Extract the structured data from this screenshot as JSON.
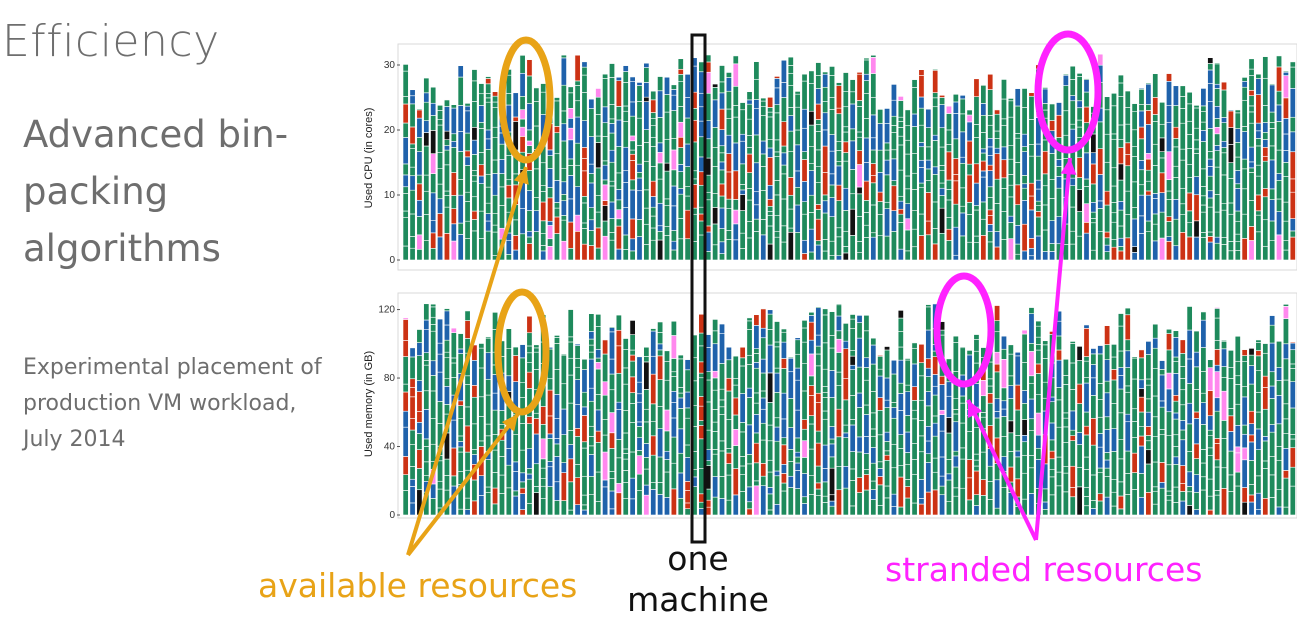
{
  "slide": {
    "title": "Efficiency",
    "subtitle": "Advanced bin-packing algorithms",
    "caption": "Experimental placement of production VM workload, July 2014"
  },
  "annotations": {
    "available": "available resources",
    "stranded": "stranded resources",
    "one_machine_line1": "one",
    "one_machine_line2": "machine"
  },
  "colors": {
    "green": "#1e8a5c",
    "blue": "#1f62ab",
    "red": "#cc3214",
    "black": "#111111",
    "pink": "#ff88ee",
    "available_ring": "#e8a317",
    "stranded_ring": "#ff22ff",
    "machine_box": "#111111"
  },
  "chart_data": [
    {
      "type": "bar",
      "stacked": true,
      "ylabel": "Used CPU (in cores)",
      "yticks": [
        0,
        10,
        20,
        30
      ],
      "ylim": [
        0,
        32
      ],
      "machines": 130,
      "series_colors": [
        "green",
        "blue",
        "red",
        "black",
        "pink"
      ],
      "categories": []
    },
    {
      "type": "bar",
      "stacked": true,
      "ylabel": "Used memory (in GB)",
      "yticks": [
        0,
        40,
        80,
        120
      ],
      "ylim": [
        0,
        125
      ],
      "machines": 130,
      "series_colors": [
        "green",
        "blue",
        "red",
        "black",
        "pink"
      ],
      "categories": []
    }
  ]
}
